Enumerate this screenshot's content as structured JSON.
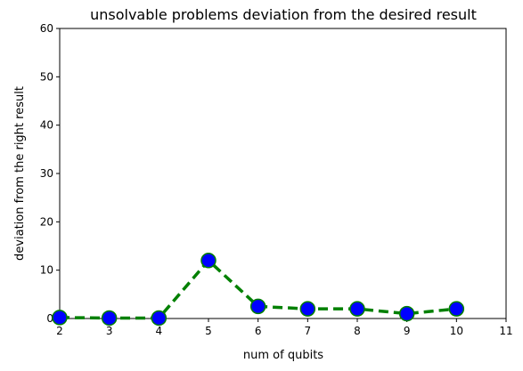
{
  "chart_data": {
    "type": "line",
    "title": "unsolvable problems deviation from the desired result",
    "xlabel": "num of qubits",
    "ylabel": "deviation from the right result",
    "xlim": [
      2,
      11
    ],
    "ylim": [
      0,
      60
    ],
    "xticks": [
      2,
      3,
      4,
      5,
      6,
      7,
      8,
      9,
      10,
      11
    ],
    "yticks": [
      0,
      10,
      20,
      30,
      40,
      50,
      60
    ],
    "grid": false,
    "series": [
      {
        "x": [
          2,
          3,
          4,
          5,
          6,
          7,
          8,
          9,
          10
        ],
        "y": [
          0.2,
          0.1,
          0.1,
          12,
          2.5,
          2,
          2,
          1,
          2
        ],
        "line_color": "#008000",
        "line_style": "dashed",
        "marker_fill": "#0000ff",
        "marker_edge": "#008000"
      }
    ]
  }
}
